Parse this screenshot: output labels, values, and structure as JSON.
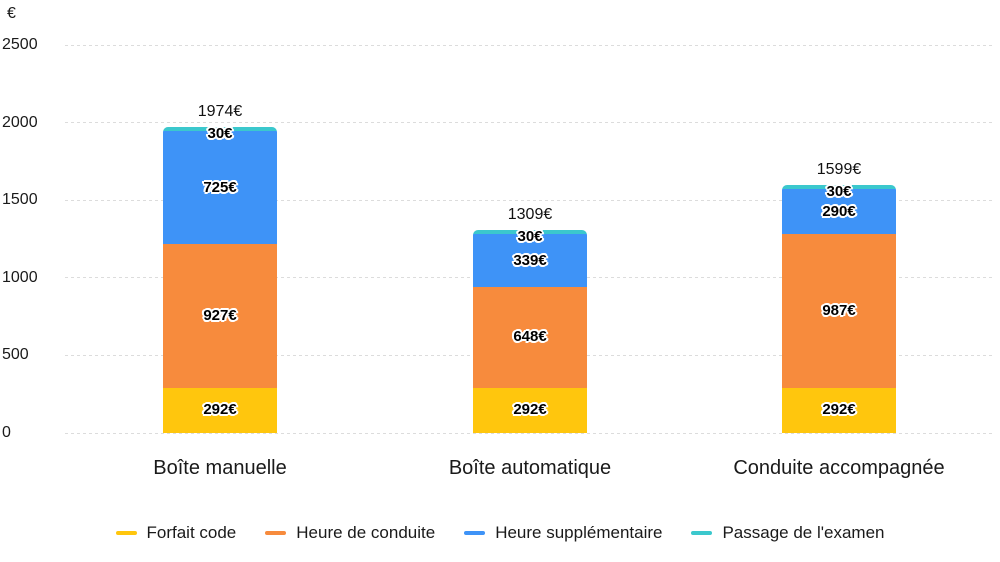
{
  "chart_data": {
    "type": "bar",
    "stacked": true,
    "y_axis_title": "€",
    "unit": "€",
    "categories": [
      "Boîte manuelle",
      "Boîte automatique",
      "Conduite accompagnée"
    ],
    "series": [
      {
        "name": "Forfait code",
        "color": "#FFC60D",
        "values": [
          292,
          292,
          292
        ]
      },
      {
        "name": "Heure de conduite",
        "color": "#F78B3D",
        "values": [
          927,
          648,
          987
        ]
      },
      {
        "name": "Heure supplémentaire",
        "color": "#3E93F7",
        "values": [
          725,
          339,
          290
        ]
      },
      {
        "name": "Passage de l'examen",
        "color": "#3BC8CD",
        "values": [
          30,
          30,
          30
        ]
      }
    ],
    "totals": [
      1974,
      1309,
      1599
    ],
    "total_labels": [
      "1974€",
      "1309€",
      "1599€"
    ],
    "segment_labels": [
      [
        "292€",
        "927€",
        "725€",
        "30€"
      ],
      [
        "292€",
        "648€",
        "339€",
        "30€"
      ],
      [
        "292€",
        "987€",
        "290€",
        "30€"
      ]
    ],
    "y_ticks": [
      0,
      500,
      1000,
      1500,
      2000,
      2500
    ],
    "ylim": [
      0,
      2500
    ],
    "grid": true,
    "grid_color": "#dcdcdc",
    "legend_position": "bottom"
  }
}
